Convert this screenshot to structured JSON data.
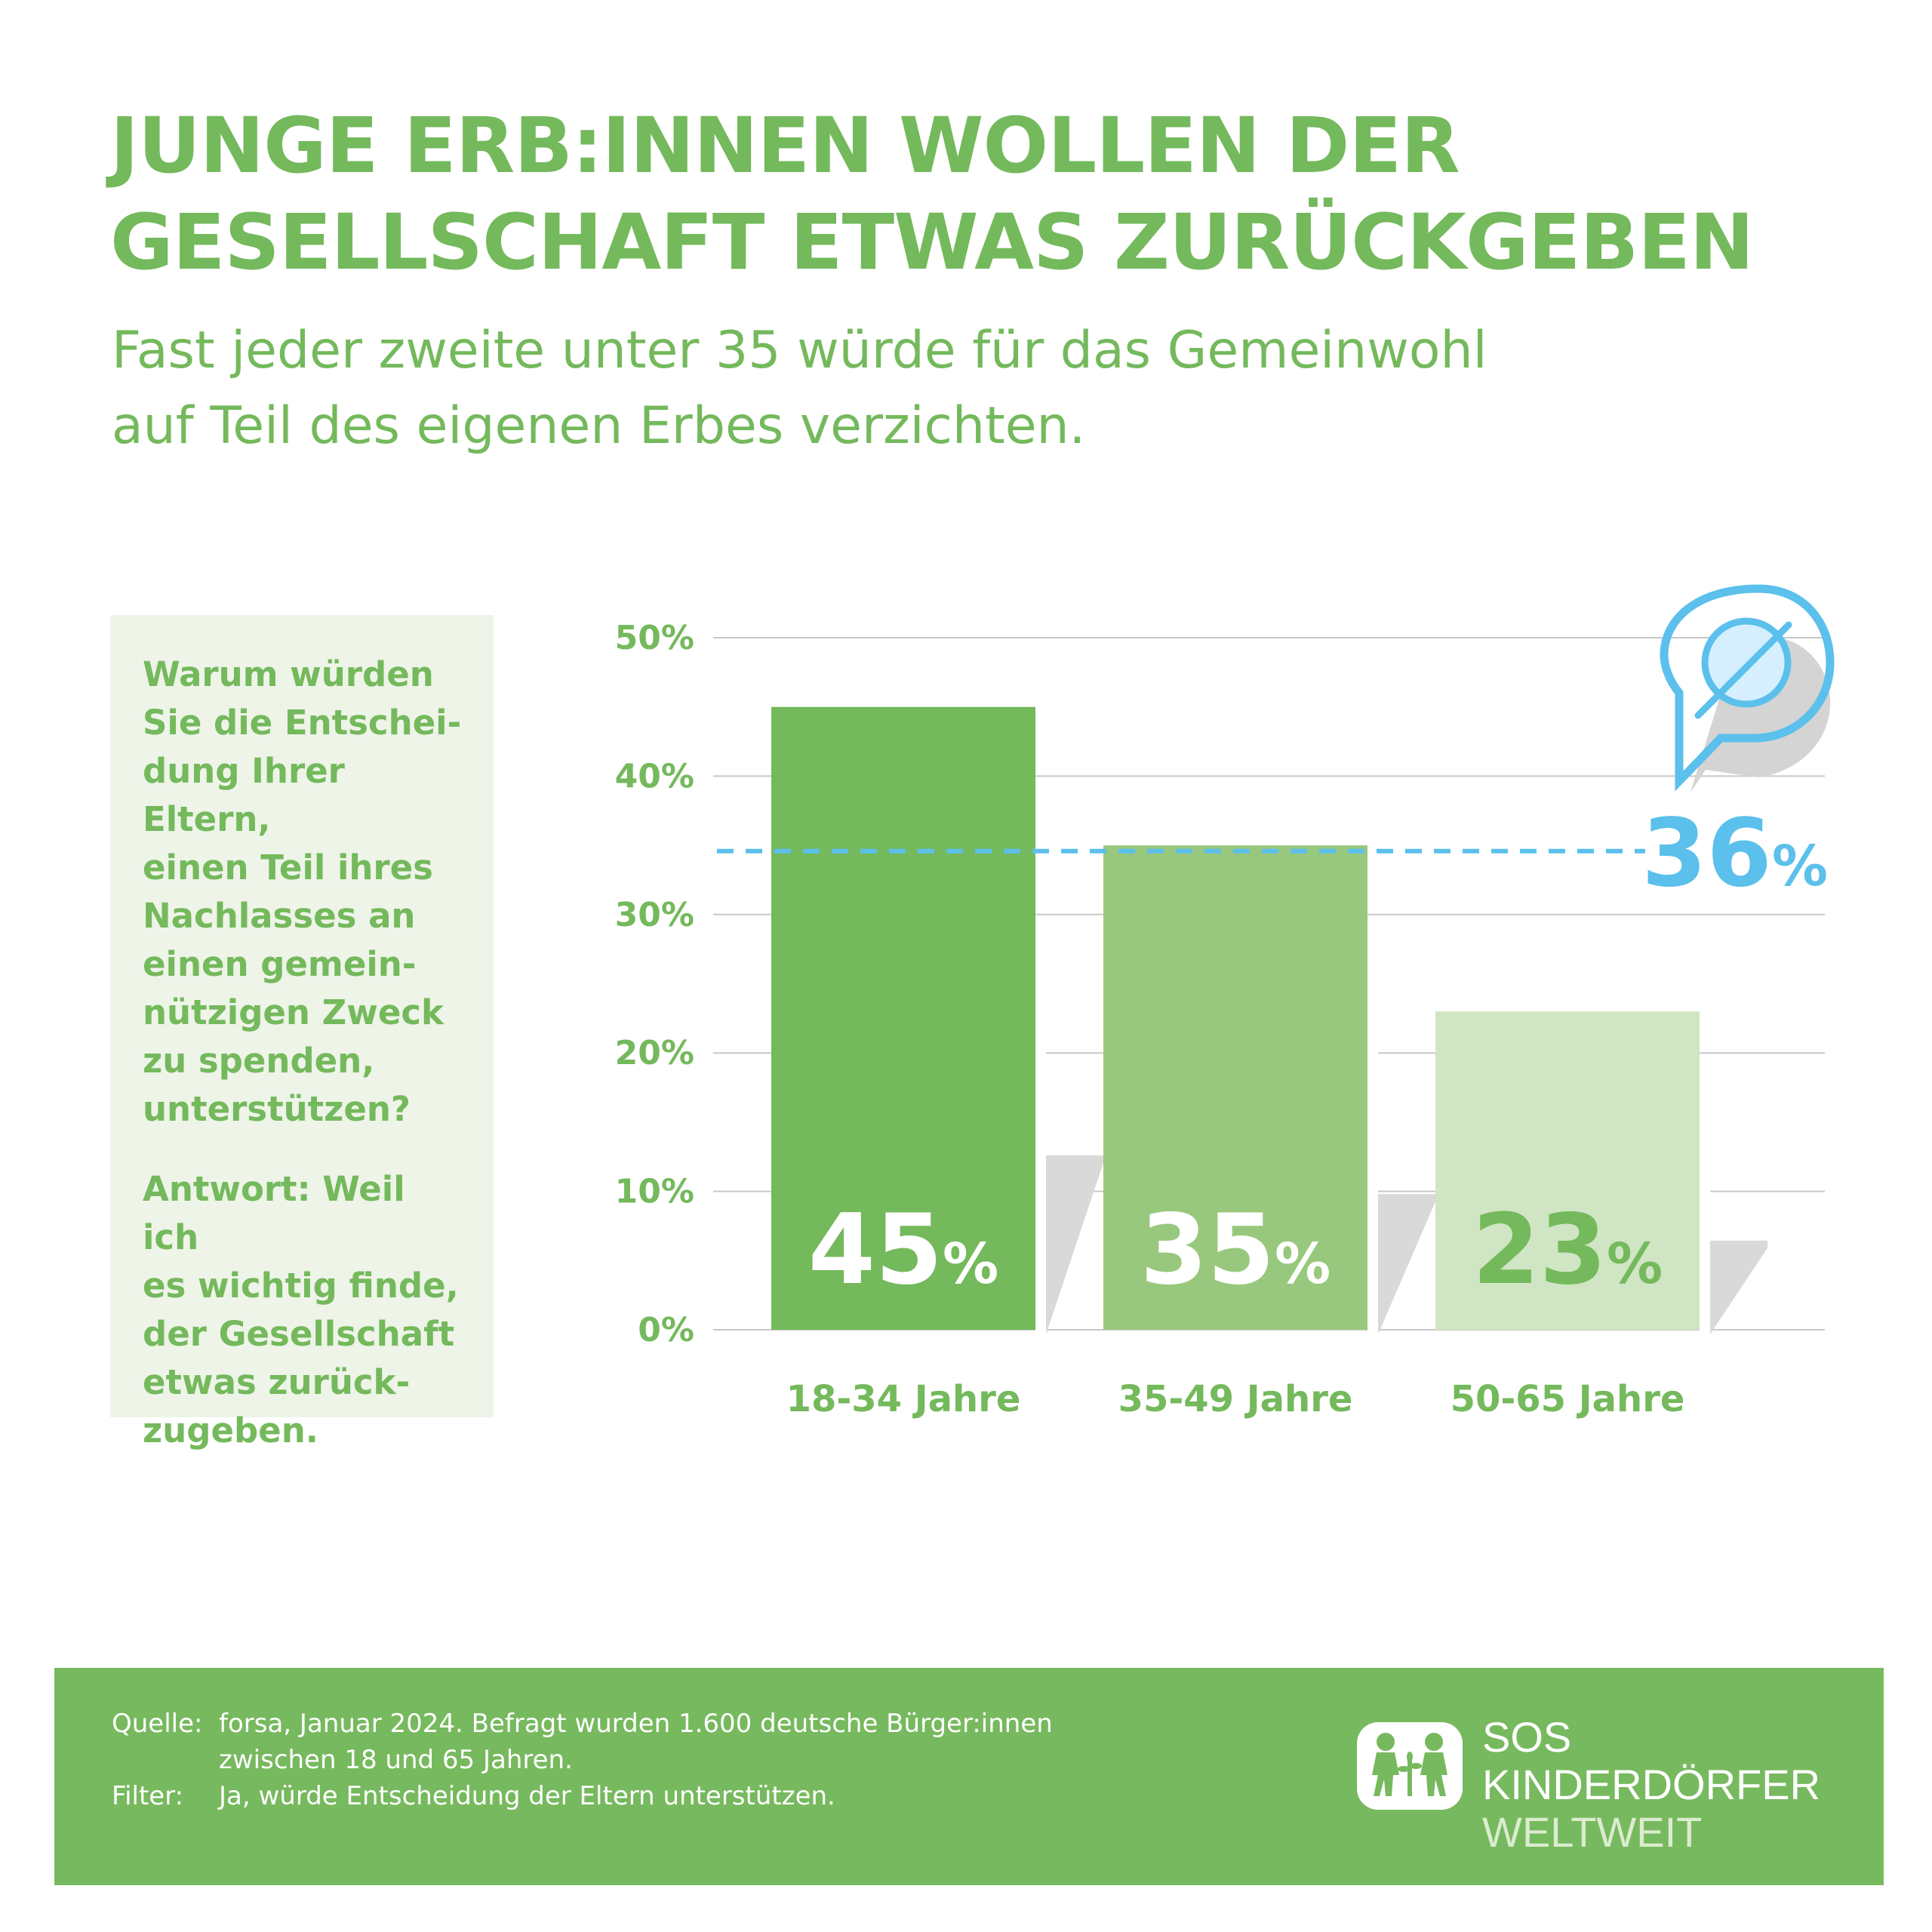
{
  "title_lines": [
    "JUNGE ERB:INNEN WOLLEN DER",
    "GESELLSCHAFT ETWAS ZURÜCKGEBEN"
  ],
  "subtitle_lines": [
    "Fast jeder zweite unter 35 würde für das Gemeinwohl",
    "auf Teil des eigenen Erbes verzichten."
  ],
  "question": "Warum würden\nSie die Entschei-\ndung Ihrer Eltern,\neinen Teil ihres\nNachlasses an\neinen gemein-\nnützigen Zweck\nzu spenden,\nunterstützen?",
  "answer": "Antwort: Weil ich\nes wichtig finde,\nder Gesellschaft\netwas zurück-\nzugeben.",
  "chart_data": {
    "type": "bar",
    "categories": [
      "18-34 Jahre",
      "35-49 Jahre",
      "50-65 Jahre"
    ],
    "values": [
      45,
      35,
      23
    ],
    "value_labels": [
      "45",
      "35",
      "23"
    ],
    "percent_sign": "%",
    "ylim": [
      0,
      50
    ],
    "yticks": [
      0,
      10,
      20,
      30,
      40,
      50
    ],
    "ytick_labels": [
      "0%",
      "10%",
      "20%",
      "30%",
      "40%",
      "50%"
    ],
    "average": {
      "value": 36,
      "label_number": "36",
      "label_sign": "%"
    },
    "colors": [
      "#74b95c",
      "#98c87d",
      "#d0e5c3"
    ],
    "label_colors": [
      "#ffffff",
      "#ffffff",
      "#74b95c"
    ],
    "average_color": "#5bc0eb",
    "grid": true
  },
  "footer": {
    "source_label": "Quelle:",
    "source_line1": "forsa, Januar 2024. Befragt wurden 1.600 deutsche Bürger:innen",
    "source_line2": "zwischen 18 und 65 Jahren.",
    "filter_label": "Filter:",
    "filter_text": "Ja, würde Entscheidung der Eltern unterstützen."
  },
  "logo": {
    "line1": "SOS",
    "line2": "KINDERDÖRFER",
    "line3": "WELTWEIT"
  }
}
